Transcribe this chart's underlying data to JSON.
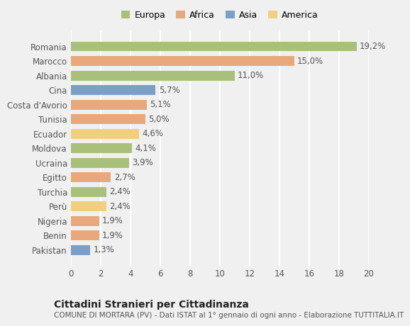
{
  "countries": [
    "Romania",
    "Marocco",
    "Albania",
    "Cina",
    "Costa d'Avorio",
    "Tunisia",
    "Ecuador",
    "Moldova",
    "Ucraina",
    "Egitto",
    "Turchia",
    "Perù",
    "Nigeria",
    "Benin",
    "Pakistan"
  ],
  "values": [
    19.2,
    15.0,
    11.0,
    5.7,
    5.1,
    5.0,
    4.6,
    4.1,
    3.9,
    2.7,
    2.4,
    2.4,
    1.9,
    1.9,
    1.3
  ],
  "labels": [
    "19,2%",
    "15,0%",
    "11,0%",
    "5,7%",
    "5,1%",
    "5,0%",
    "4,6%",
    "4,1%",
    "3,9%",
    "2,7%",
    "2,4%",
    "2,4%",
    "1,9%",
    "1,9%",
    "1,3%"
  ],
  "regions": [
    "Europa",
    "Africa",
    "Europa",
    "Asia",
    "Africa",
    "Africa",
    "America",
    "Europa",
    "Europa",
    "Africa",
    "Europa",
    "America",
    "Africa",
    "Africa",
    "Asia"
  ],
  "colors": {
    "Europa": "#a8c07a",
    "Africa": "#e8a87c",
    "Asia": "#7b9fc7",
    "America": "#f0d080"
  },
  "legend_order": [
    "Europa",
    "Africa",
    "Asia",
    "America"
  ],
  "legend_colors": [
    "#a8c07a",
    "#e8a87c",
    "#7b9fc7",
    "#f0d080"
  ],
  "xlim": [
    0,
    20
  ],
  "xticks": [
    0,
    2,
    4,
    6,
    8,
    10,
    12,
    14,
    16,
    18,
    20
  ],
  "title": "Cittadini Stranieri per Cittadinanza",
  "subtitle": "COMUNE DI MORTARA (PV) - Dati ISTAT al 1° gennaio di ogni anno - Elaborazione TUTTITALIA.IT",
  "background_color": "#f0f0f0",
  "grid_color": "#ffffff",
  "bar_height": 0.68,
  "label_fontsize": 8.5,
  "tick_fontsize": 8.5,
  "title_fontsize": 10,
  "subtitle_fontsize": 7.5
}
